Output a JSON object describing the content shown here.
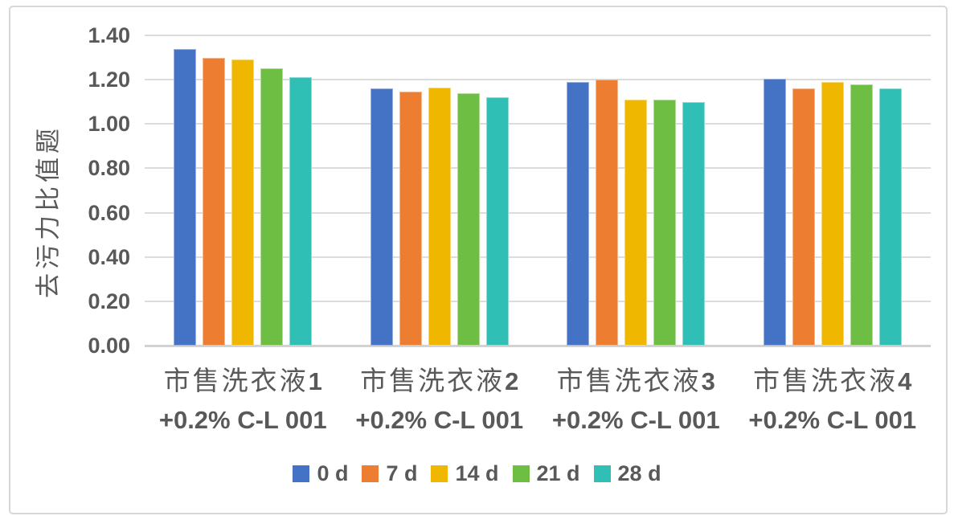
{
  "chart_data": {
    "type": "bar",
    "title": "",
    "xlabel": "",
    "ylabel": "去污力比值题",
    "ylim": [
      0,
      1.4
    ],
    "ytick_interval": 0.2,
    "yticks": [
      "1.40",
      "1.20",
      "1.00",
      "0.80",
      "0.60",
      "0.40",
      "0.20",
      "0.00"
    ],
    "grid": true,
    "legend_position": "bottom",
    "categories": [
      {
        "zh": "市售洗衣液",
        "num": "1",
        "line2": "+0.2% C-L 001"
      },
      {
        "zh": "市售洗衣液",
        "num": "2",
        "line2": "+0.2% C-L 001"
      },
      {
        "zh": "市售洗衣液",
        "num": "3",
        "line2": "+0.2% C-L 001"
      },
      {
        "zh": "市售洗衣液",
        "num": "4",
        "line2": "+0.2% C-L 001"
      }
    ],
    "series": [
      {
        "name": "0 d",
        "color": "#4472C4",
        "values": [
          1.34,
          1.16,
          1.19,
          1.205
        ]
      },
      {
        "name": "7 d",
        "color": "#ED7D31",
        "values": [
          1.3,
          1.145,
          1.2,
          1.16
        ]
      },
      {
        "name": "14 d",
        "color": "#EFB700",
        "values": [
          1.29,
          1.165,
          1.11,
          1.19
        ]
      },
      {
        "name": "21 d",
        "color": "#6FBE44",
        "values": [
          1.25,
          1.14,
          1.11,
          1.18
        ]
      },
      {
        "name": "28 d",
        "color": "#30BFB4",
        "values": [
          1.21,
          1.12,
          1.1,
          1.16
        ]
      }
    ],
    "colors": {
      "text": "#595959",
      "gridline": "#DCDCDC",
      "axis_line": "#D2D2D2",
      "frame_border": "#D7D7D7"
    }
  }
}
